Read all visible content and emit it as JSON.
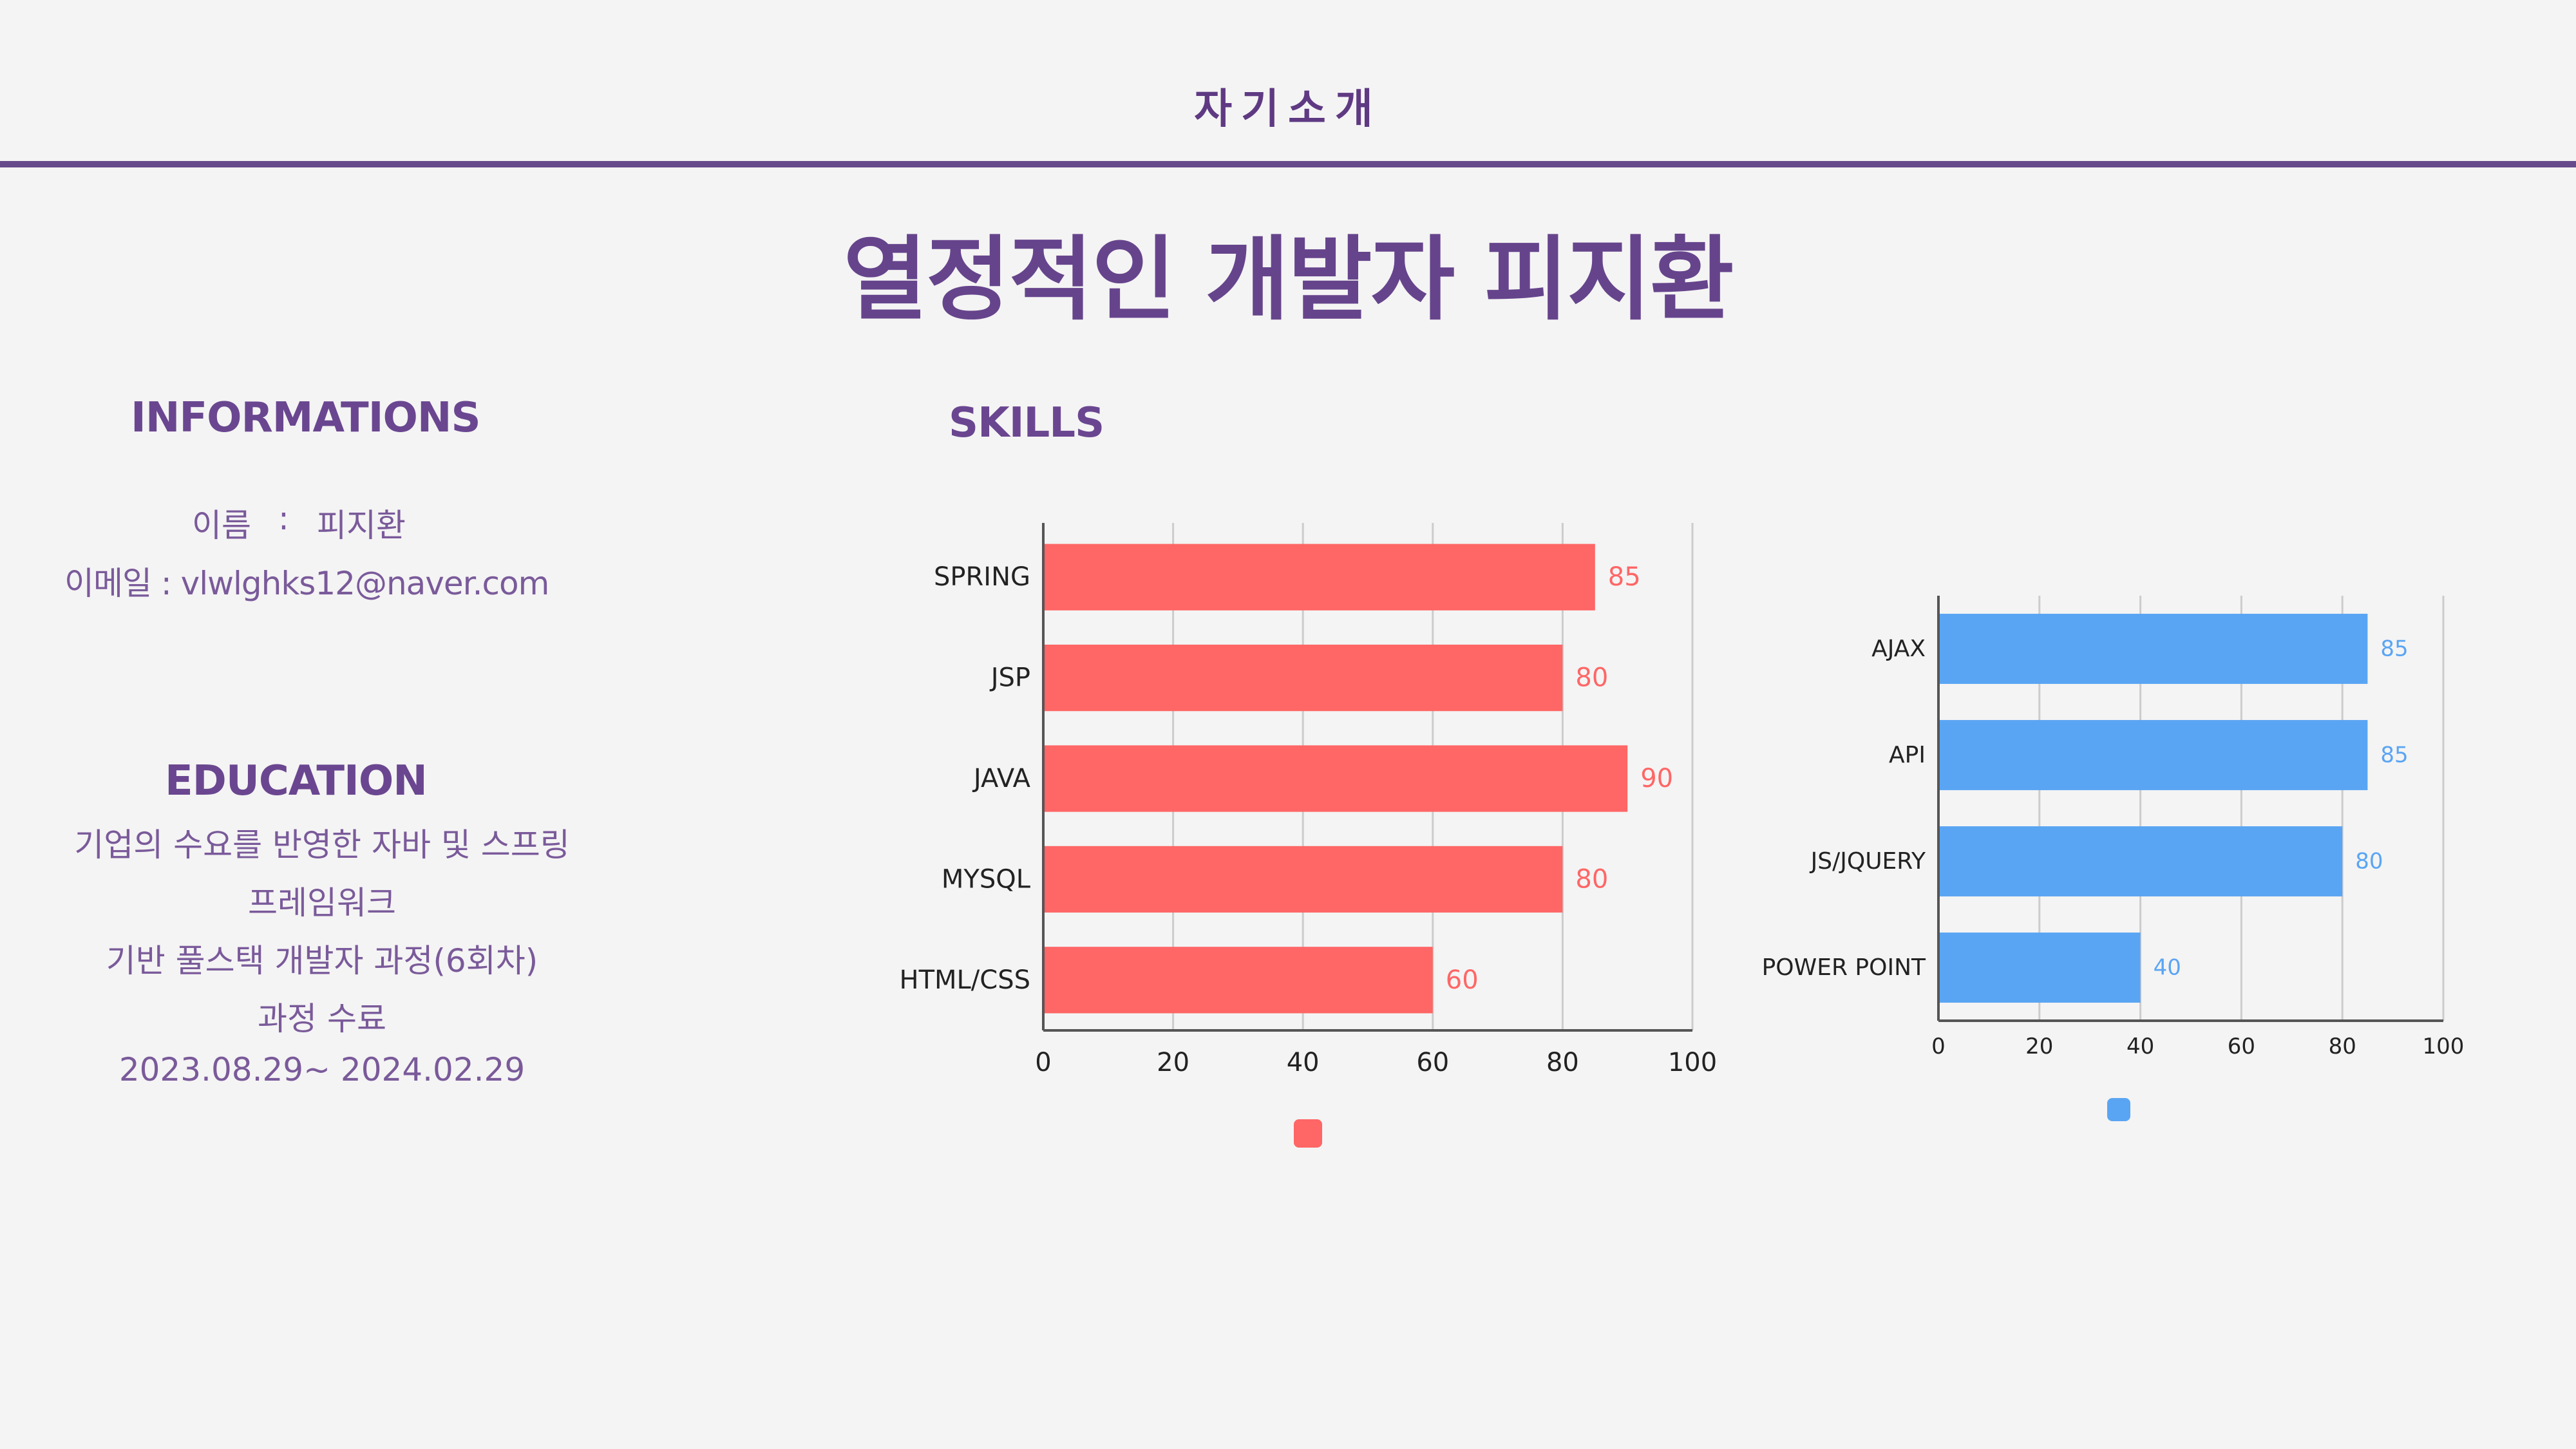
{
  "header": {
    "title": "자기소개"
  },
  "hero": {
    "title": "열정적인 개발자 피지환"
  },
  "informations": {
    "title": "INFORMATIONS",
    "name_label": "이름",
    "name_sep": ":",
    "name_value": "피지환",
    "email_line": "이메일 : vlwlghks12@naver.com"
  },
  "education": {
    "title": "EDUCATION",
    "lines": [
      "기업의 수요를 반영한 자바 및 스프링",
      "프레임워크",
      "기반 풀스택 개발자 과정(6회차)",
      "과정 수료",
      "2023.08.29~ 2024.02.29"
    ]
  },
  "skills": {
    "title": "SKILLS"
  },
  "chart_data": [
    {
      "type": "bar",
      "orientation": "horizontal",
      "categories": [
        "SPRING",
        "JSP",
        "JAVA",
        "MYSQL",
        "HTML/CSS"
      ],
      "values": [
        85,
        80,
        90,
        80,
        60
      ],
      "xlim": [
        0,
        100
      ],
      "ticks": [
        0,
        20,
        40,
        60,
        80,
        100
      ],
      "color": "#ff6666",
      "grid": true,
      "legend": "bottom-center"
    },
    {
      "type": "bar",
      "orientation": "horizontal",
      "categories": [
        "AJAX",
        "API",
        "JS/JQUERY",
        "POWER POINT"
      ],
      "values": [
        85,
        85,
        80,
        40
      ],
      "xlim": [
        0,
        100
      ],
      "ticks": [
        0,
        20,
        40,
        60,
        80,
        100
      ],
      "color": "#5aa5f3",
      "grid": true,
      "legend": "bottom-center"
    }
  ]
}
